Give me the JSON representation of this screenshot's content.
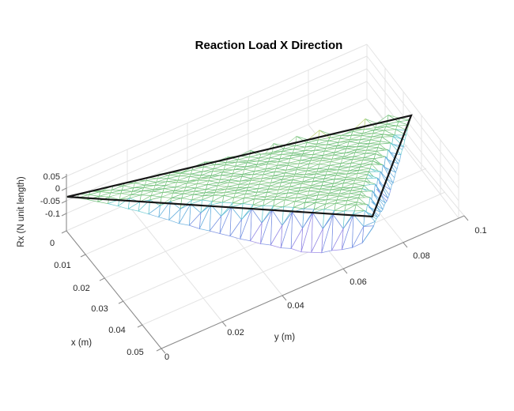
{
  "chart_data": {
    "type": "mesh3d",
    "title": "Reaction Load X Direction",
    "xlabel": "x (m)",
    "ylabel": "y (m)",
    "zlabel": "Rx (N unit length)",
    "xticks": [
      "0",
      "0.01",
      "0.02",
      "0.03",
      "0.04",
      "0.05"
    ],
    "yticks": [
      "0",
      "0.02",
      "0.04",
      "0.06",
      "0.08",
      "0.1"
    ],
    "zticks": [
      "0.05",
      "0",
      "-0.05",
      "-0.1"
    ],
    "xlim": [
      0,
      0.05
    ],
    "ylim": [
      0,
      0.1
    ],
    "zlim": [
      -0.15,
      0.05
    ],
    "grid": true,
    "view": "MATLAB-style 3D view, x axis lower-left, y axis lower-right, z vertical",
    "colormap": "parula",
    "surface": {
      "description": "Wireframe triangular FEM mesh of nodal reaction load Rx over a triangular plate domain; interior values near 0 (green), boundary nodes oscillate: positive yellow/orange spikes along the far edge, negative cyan/blue/purple dip hanging below the front edge.",
      "mesh_divisions_per_edge": 30,
      "interior_value": 0,
      "front_edge_dip_min": -0.12,
      "front_edge_dip_location_y": 0.05,
      "top_edge_spike_max": 0.04,
      "right_edge_dip_min": -0.08,
      "outline": "black triangle drawn at z = 0 along the plate boundary",
      "outline_triangle_xy_estimate": [
        [
          0,
          0
        ],
        [
          0.025,
          0.1
        ],
        [
          0.05,
          0.07
        ]
      ]
    },
    "palette": {
      "interior_green_a": "#74c27c",
      "interior_green_b": "#88ca88",
      "interior_green_c": "#65bb71",
      "positive_yellow_green": "#b9d066",
      "positive_yellow": "#e2c44c",
      "positive_orange": "#e7a63f",
      "negative_cyan": "#5ec7cd",
      "negative_skyblue": "#58a7db",
      "negative_blue": "#6f86e0",
      "negative_purple": "#8d7ae3",
      "outline_black": "#161616",
      "axis_gray": "#8c8c8c",
      "grid_gray": "#e4e4e4",
      "text_color": "#262626",
      "background": "#ffffff"
    }
  }
}
